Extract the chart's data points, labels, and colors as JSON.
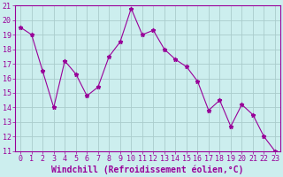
{
  "x": [
    0,
    1,
    2,
    3,
    4,
    5,
    6,
    7,
    8,
    9,
    10,
    11,
    12,
    13,
    14,
    15,
    16,
    17,
    18,
    19,
    20,
    21,
    22,
    23
  ],
  "y": [
    19.5,
    19.0,
    16.5,
    14.0,
    17.2,
    16.3,
    14.8,
    15.4,
    17.5,
    18.5,
    20.8,
    19.0,
    19.3,
    18.0,
    17.3,
    16.8,
    15.8,
    13.8,
    14.5,
    12.7,
    14.2,
    13.5,
    12.0,
    11.0
  ],
  "line_color": "#990099",
  "marker": "*",
  "marker_size": 3.5,
  "bg_color": "#cceeee",
  "grid_color": "#aacccc",
  "xlabel": "Windchill (Refroidissement éolien,°C)",
  "xlim": [
    -0.5,
    23.5
  ],
  "ylim": [
    11,
    21
  ],
  "yticks": [
    11,
    12,
    13,
    14,
    15,
    16,
    17,
    18,
    19,
    20,
    21
  ],
  "xticks": [
    0,
    1,
    2,
    3,
    4,
    5,
    6,
    7,
    8,
    9,
    10,
    11,
    12,
    13,
    14,
    15,
    16,
    17,
    18,
    19,
    20,
    21,
    22,
    23
  ],
  "tick_color": "#990099",
  "label_fontsize": 7,
  "tick_fontsize": 6
}
